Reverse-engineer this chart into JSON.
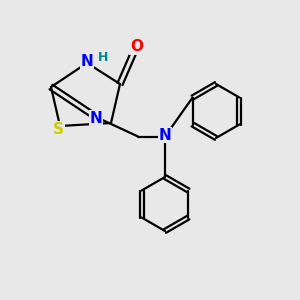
{
  "bg_color": "#e8e8e8",
  "atom_colors": {
    "O": "#ff0000",
    "N": "#0000ff",
    "S": "#cccc00",
    "C": "#000000",
    "H": "#008888"
  }
}
